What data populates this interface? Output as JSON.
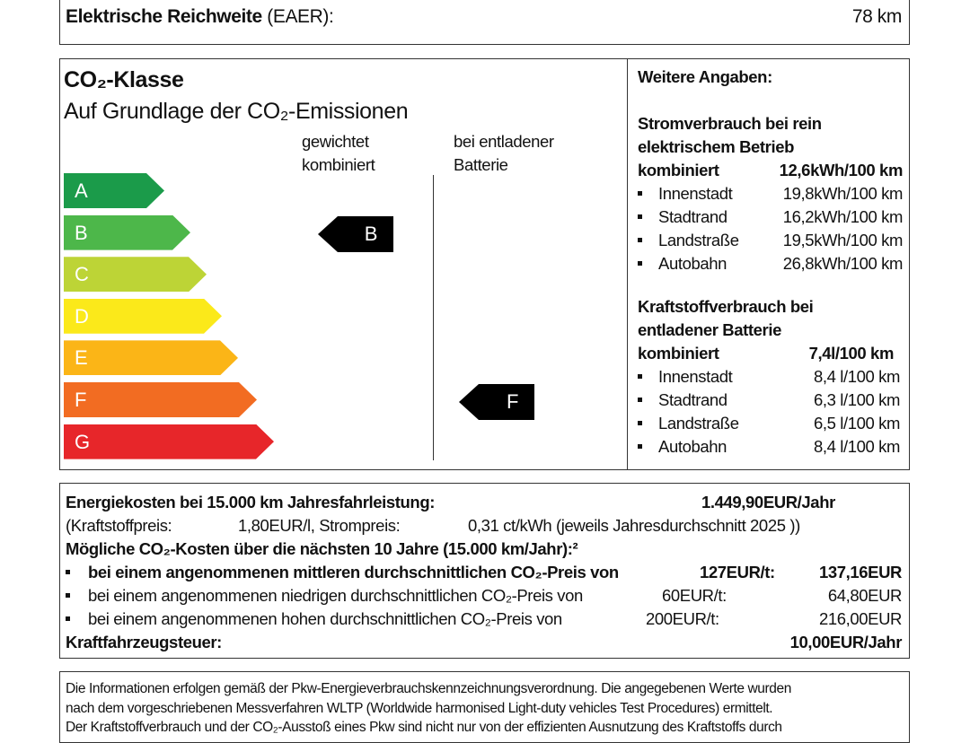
{
  "top": {
    "label_bold": "Elektrische Reichweite",
    "label_rest": "(EAER):",
    "value": "78 km"
  },
  "co2": {
    "title": "CO₂-Klasse",
    "subtitle": "Auf Grundlage der CO₂-Emissionen",
    "col1": [
      "gewichtet",
      "kombiniert"
    ],
    "col2": [
      "bei entladener",
      "Batterie"
    ],
    "classes": [
      {
        "letter": "A",
        "color": "#1b9b4a"
      },
      {
        "letter": "B",
        "color": "#4db74a"
      },
      {
        "letter": "C",
        "color": "#bdd436"
      },
      {
        "letter": "D",
        "color": "#fbe91a"
      },
      {
        "letter": "E",
        "color": "#fbb517"
      },
      {
        "letter": "F",
        "color": "#f26c22"
      },
      {
        "letter": "G",
        "color": "#e7262a"
      }
    ],
    "weighted_class": "B",
    "discharged_class": "F"
  },
  "more": {
    "title": "Weitere Angaben:",
    "elec": {
      "heading": [
        "Stromverbrauch bei rein",
        "elektrischem Betrieb"
      ],
      "combined_label": "kombiniert",
      "combined_value": "12,6kWh/100 km",
      "items": [
        {
          "label": "Innenstadt",
          "value": "19,8kWh/100 km"
        },
        {
          "label": "Stadtrand",
          "value": "16,2kWh/100 km"
        },
        {
          "label": "Landstraße",
          "value": "19,5kWh/100 km"
        },
        {
          "label": "Autobahn",
          "value": "26,8kWh/100 km"
        }
      ]
    },
    "fuel": {
      "heading": [
        "Kraftstoffverbrauch bei",
        "entladener Batterie"
      ],
      "combined_label": "kombiniert",
      "combined_value": "7,4l/100 km",
      "items": [
        {
          "label": "Innenstadt",
          "value": "8,4 l/100 km"
        },
        {
          "label": "Stadtrand",
          "value": "6,3 l/100 km"
        },
        {
          "label": "Landstraße",
          "value": "6,5 l/100 km"
        },
        {
          "label": "Autobahn",
          "value": "8,4 l/100 km"
        }
      ]
    }
  },
  "costs": {
    "energy_label": "Energiekosten bei 15.000 km Jahresfahrleistung:",
    "energy_value": "1.449,90EUR/Jahr",
    "fuel_price_label": "(Kraftstoffpreis:",
    "fuel_price": "1,80EUR/l, Strompreis:",
    "power_price": "0,31 ct/kWh (jeweils Jahresdurchschnitt 2025  ))",
    "co2_heading": "Mögliche CO₂-Kosten über die nächsten 10 Jahre (15.000 km/Jahr):²",
    "scenarios": [
      {
        "label": "bei einem angenommenen mittleren durchschnittlichen CO₂-Preis von",
        "price": "127EUR/t:",
        "total": "137,16EUR"
      },
      {
        "label": "bei einem angenommenen niedrigen durchschnittlichen CO₂-Preis von",
        "price": "60EUR/t:",
        "total": "64,80EUR"
      },
      {
        "label": "bei einem angenommenen hohen durchschnittlichen CO₂-Preis von",
        "price": "200EUR/t:",
        "total": "216,00EUR"
      }
    ],
    "tax_label": "Kraftfahrzeugsteuer:",
    "tax_value": "10,00EUR/Jahr"
  },
  "footer": {
    "lines": [
      "Die Informationen erfolgen gemäß der Pkw-Energieverbrauchskennzeichnungsverordnung. Die angegebenen Werte wurden",
      "nach dem vorgeschriebenen Messverfahren WLTP (Worldwide harmonised Light-duty vehicles Test Procedures) ermittelt.",
      "Der Kraftstoffverbrauch und der CO₂-Ausstoß eines Pkw sind nicht nur von der effizienten Ausnutzung des Kraftstoffs durch"
    ]
  }
}
